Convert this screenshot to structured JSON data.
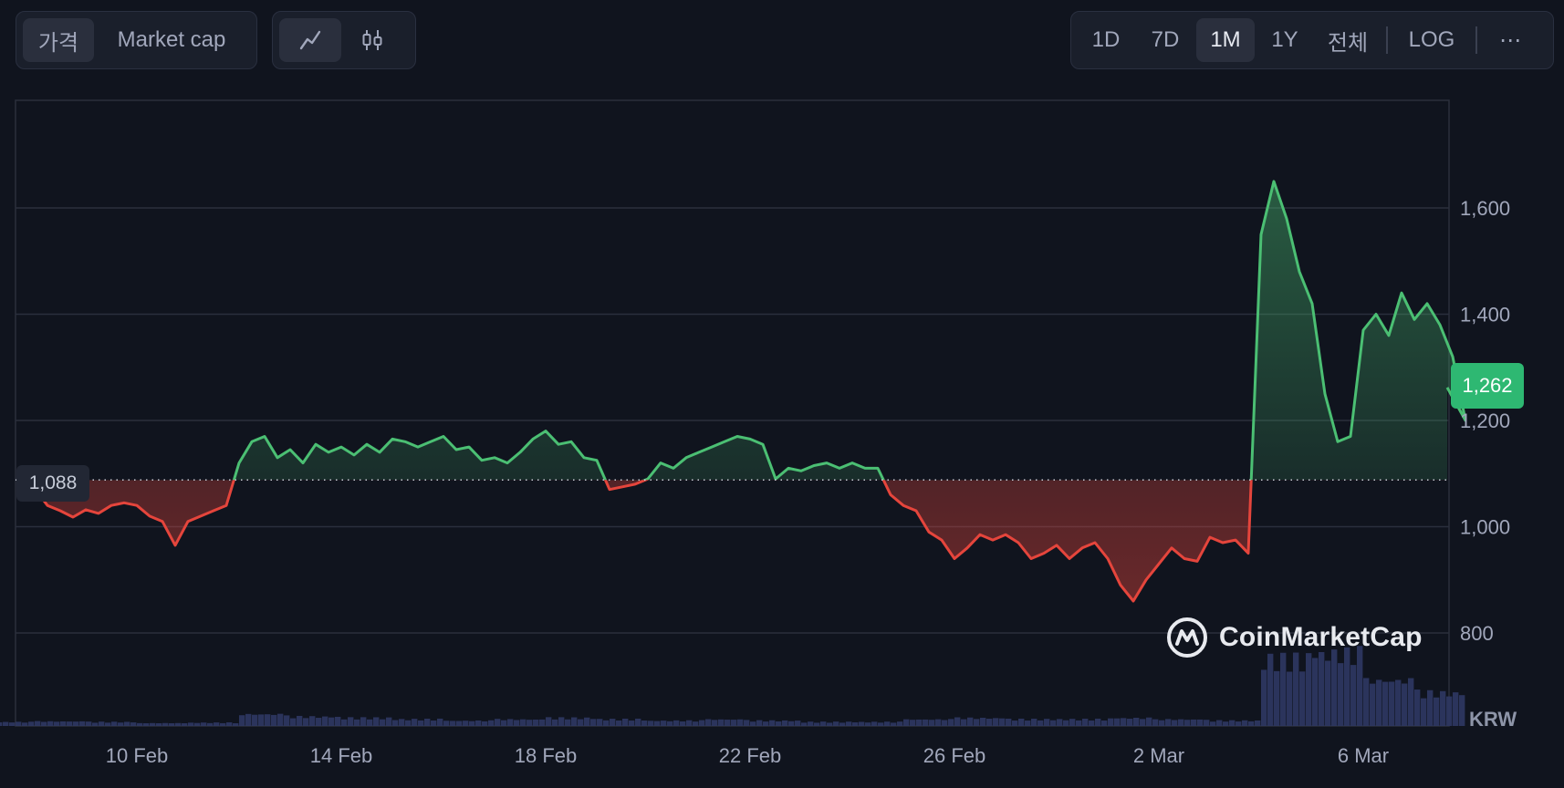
{
  "toolbar_left": {
    "price_tab": "가격",
    "marketcap_tab": "Market cap"
  },
  "toolbar_right": {
    "ranges": [
      "1D",
      "7D",
      "1M",
      "1Y",
      "전체"
    ],
    "active_range": "1M",
    "log_label": "LOG",
    "more_label": "⋯"
  },
  "icons": {
    "line_chart": "line-chart-icon",
    "candlestick": "candlestick-icon",
    "brand": "coinmarketcap-logo-icon"
  },
  "brand_name": "CoinMarketCap",
  "currency": "KRW",
  "colors": {
    "up": "#4bbf73",
    "down": "#e5453c",
    "volume": "#2f3763",
    "grid": "#2a2f3c",
    "badge_up": "#2eb872"
  },
  "chart_data": {
    "type": "area",
    "x_ticks": [
      "10 Feb",
      "14 Feb",
      "18 Feb",
      "22 Feb",
      "26 Feb",
      "2 Mar",
      "6 Mar"
    ],
    "y_ticks": [
      800,
      1000,
      1200,
      1400,
      1600
    ],
    "ylim": [
      680,
      1740
    ],
    "baseline": {
      "value": 1088,
      "label": "1,088"
    },
    "current": {
      "value": 1262,
      "label": "1,262"
    },
    "y_tick_labels": [
      "800",
      "1,000",
      "1,200",
      "1,400",
      "1,600"
    ],
    "x_range": [
      "2025-02-07",
      "2025-03-08"
    ],
    "series": [
      {
        "points": [
          [
            "2025-02-07 12:00",
            1058
          ],
          [
            "2025-02-08 00:00",
            1072
          ],
          [
            "2025-02-08 06:00",
            1040
          ],
          [
            "2025-02-08 12:00",
            1030
          ],
          [
            "2025-02-08 18:00",
            1018
          ],
          [
            "2025-02-09 00:00",
            1032
          ],
          [
            "2025-02-09 06:00",
            1025
          ],
          [
            "2025-02-09 12:00",
            1040
          ],
          [
            "2025-02-09 18:00",
            1045
          ],
          [
            "2025-02-10 00:00",
            1040
          ],
          [
            "2025-02-10 06:00",
            1020
          ],
          [
            "2025-02-10 12:00",
            1010
          ],
          [
            "2025-02-10 18:00",
            965
          ],
          [
            "2025-02-11 00:00",
            1010
          ],
          [
            "2025-02-11 06:00",
            1020
          ],
          [
            "2025-02-11 12:00",
            1030
          ],
          [
            "2025-02-11 18:00",
            1040
          ],
          [
            "2025-02-12 00:00",
            1120
          ],
          [
            "2025-02-12 06:00",
            1160
          ],
          [
            "2025-02-12 12:00",
            1170
          ],
          [
            "2025-02-12 18:00",
            1130
          ],
          [
            "2025-02-13 00:00",
            1145
          ],
          [
            "2025-02-13 06:00",
            1120
          ],
          [
            "2025-02-13 12:00",
            1155
          ],
          [
            "2025-02-13 18:00",
            1140
          ],
          [
            "2025-02-14 00:00",
            1150
          ],
          [
            "2025-02-14 06:00",
            1135
          ],
          [
            "2025-02-14 12:00",
            1155
          ],
          [
            "2025-02-14 18:00",
            1140
          ],
          [
            "2025-02-15 00:00",
            1165
          ],
          [
            "2025-02-15 06:00",
            1160
          ],
          [
            "2025-02-15 12:00",
            1150
          ],
          [
            "2025-02-15 18:00",
            1160
          ],
          [
            "2025-02-16 00:00",
            1170
          ],
          [
            "2025-02-16 06:00",
            1145
          ],
          [
            "2025-02-16 12:00",
            1150
          ],
          [
            "2025-02-16 18:00",
            1125
          ],
          [
            "2025-02-17 00:00",
            1130
          ],
          [
            "2025-02-17 06:00",
            1120
          ],
          [
            "2025-02-17 12:00",
            1140
          ],
          [
            "2025-02-17 18:00",
            1165
          ],
          [
            "2025-02-18 00:00",
            1180
          ],
          [
            "2025-02-18 06:00",
            1155
          ],
          [
            "2025-02-18 12:00",
            1160
          ],
          [
            "2025-02-18 18:00",
            1130
          ],
          [
            "2025-02-19 00:00",
            1125
          ],
          [
            "2025-02-19 06:00",
            1070
          ],
          [
            "2025-02-19 12:00",
            1075
          ],
          [
            "2025-02-19 18:00",
            1080
          ],
          [
            "2025-02-20 00:00",
            1090
          ],
          [
            "2025-02-20 06:00",
            1120
          ],
          [
            "2025-02-20 12:00",
            1110
          ],
          [
            "2025-02-20 18:00",
            1130
          ],
          [
            "2025-02-21 00:00",
            1140
          ],
          [
            "2025-02-21 06:00",
            1150
          ],
          [
            "2025-02-21 12:00",
            1160
          ],
          [
            "2025-02-21 18:00",
            1170
          ],
          [
            "2025-02-22 00:00",
            1165
          ],
          [
            "2025-02-22 06:00",
            1155
          ],
          [
            "2025-02-22 12:00",
            1090
          ],
          [
            "2025-02-22 18:00",
            1110
          ],
          [
            "2025-02-23 00:00",
            1105
          ],
          [
            "2025-02-23 06:00",
            1115
          ],
          [
            "2025-02-23 12:00",
            1120
          ],
          [
            "2025-02-23 18:00",
            1110
          ],
          [
            "2025-02-24 00:00",
            1120
          ],
          [
            "2025-02-24 06:00",
            1110
          ],
          [
            "2025-02-24 12:00",
            1110
          ],
          [
            "2025-02-24 18:00",
            1060
          ],
          [
            "2025-02-25 00:00",
            1040
          ],
          [
            "2025-02-25 06:00",
            1030
          ],
          [
            "2025-02-25 12:00",
            990
          ],
          [
            "2025-02-25 18:00",
            975
          ],
          [
            "2025-02-26 00:00",
            940
          ],
          [
            "2025-02-26 06:00",
            960
          ],
          [
            "2025-02-26 12:00",
            985
          ],
          [
            "2025-02-26 18:00",
            975
          ],
          [
            "2025-02-27 00:00",
            985
          ],
          [
            "2025-02-27 06:00",
            970
          ],
          [
            "2025-02-27 12:00",
            940
          ],
          [
            "2025-02-27 18:00",
            950
          ],
          [
            "2025-02-28 00:00",
            965
          ],
          [
            "2025-02-28 06:00",
            940
          ],
          [
            "2025-02-28 12:00",
            960
          ],
          [
            "2025-02-28 18:00",
            970
          ],
          [
            "2025-03-01 00:00",
            940
          ],
          [
            "2025-03-01 06:00",
            890
          ],
          [
            "2025-03-01 12:00",
            860
          ],
          [
            "2025-03-01 18:00",
            900
          ],
          [
            "2025-03-02 00:00",
            930
          ],
          [
            "2025-03-02 06:00",
            960
          ],
          [
            "2025-03-02 12:00",
            940
          ],
          [
            "2025-03-02 18:00",
            935
          ],
          [
            "2025-03-03 00:00",
            980
          ],
          [
            "2025-03-03 06:00",
            970
          ],
          [
            "2025-03-03 12:00",
            975
          ],
          [
            "2025-03-03 18:00",
            950
          ],
          [
            "2025-03-04 00:00",
            1550
          ],
          [
            "2025-03-04 06:00",
            1650
          ],
          [
            "2025-03-04 12:00",
            1580
          ],
          [
            "2025-03-04 18:00",
            1480
          ],
          [
            "2025-03-05 00:00",
            1420
          ],
          [
            "2025-03-05 06:00",
            1250
          ],
          [
            "2025-03-05 12:00",
            1160
          ],
          [
            "2025-03-05 18:00",
            1170
          ],
          [
            "2025-03-06 00:00",
            1370
          ],
          [
            "2025-03-06 06:00",
            1400
          ],
          [
            "2025-03-06 12:00",
            1360
          ],
          [
            "2025-03-06 18:00",
            1440
          ],
          [
            "2025-03-07 00:00",
            1390
          ],
          [
            "2025-03-07 06:00",
            1420
          ],
          [
            "2025-03-07 12:00",
            1380
          ],
          [
            "2025-03-07 18:00",
            1320
          ],
          [
            "2025-03-08 00:00",
            1200
          ],
          [
            "2025-03-08 06:00",
            1262
          ]
        ]
      }
    ],
    "volume": [
      [
        "2025-02-07",
        0.03
      ],
      [
        "2025-02-08",
        0.035
      ],
      [
        "2025-02-09",
        0.03
      ],
      [
        "2025-02-10",
        0.02
      ],
      [
        "2025-02-11",
        0.025
      ],
      [
        "2025-02-12",
        0.09
      ],
      [
        "2025-02-13",
        0.07
      ],
      [
        "2025-02-14",
        0.06
      ],
      [
        "2025-02-15",
        0.05
      ],
      [
        "2025-02-16",
        0.04
      ],
      [
        "2025-02-17",
        0.05
      ],
      [
        "2025-02-18",
        0.06
      ],
      [
        "2025-02-19",
        0.05
      ],
      [
        "2025-02-20",
        0.04
      ],
      [
        "2025-02-21",
        0.05
      ],
      [
        "2025-02-22",
        0.04
      ],
      [
        "2025-02-23",
        0.03
      ],
      [
        "2025-02-24",
        0.03
      ],
      [
        "2025-02-25",
        0.05
      ],
      [
        "2025-02-26",
        0.06
      ],
      [
        "2025-02-27",
        0.05
      ],
      [
        "2025-02-28",
        0.05
      ],
      [
        "2025-03-01",
        0.06
      ],
      [
        "2025-03-02",
        0.05
      ],
      [
        "2025-03-03",
        0.04
      ],
      [
        "2025-03-04",
        0.5
      ],
      [
        "2025-03-05",
        0.55
      ],
      [
        "2025-03-06",
        0.35
      ],
      [
        "2025-03-07",
        0.25
      ],
      [
        "2025-03-08",
        0.18
      ]
    ]
  }
}
